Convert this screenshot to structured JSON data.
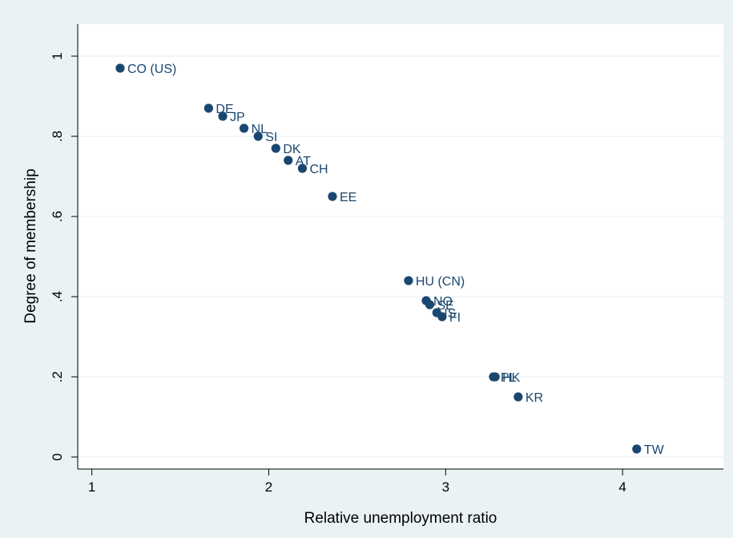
{
  "colors": {
    "background": "#eaf2f3",
    "plot_area": "#ffffff",
    "marker": "#1a476f",
    "gridline": "#eaf2f3"
  },
  "chart_data": {
    "type": "scatter",
    "title": "",
    "xlabel": "Relative unemployment ratio",
    "ylabel": "Degree of membership",
    "xlim": [
      0.92,
      4.57
    ],
    "ylim": [
      -0.03,
      1.08
    ],
    "x_ticks": [
      1,
      2,
      3,
      4
    ],
    "x_tick_labels": [
      "1",
      "2",
      "3",
      "4"
    ],
    "y_ticks": [
      0,
      0.2,
      0.4,
      0.6,
      0.8,
      1
    ],
    "y_tick_labels": [
      "0",
      ".2",
      ".4",
      ".6",
      ".8",
      "1"
    ],
    "grid": "horizontal",
    "legend": "none",
    "points": [
      {
        "label": "CO (US)",
        "x": 1.16,
        "y": 0.97
      },
      {
        "label": "DE",
        "x": 1.66,
        "y": 0.87
      },
      {
        "label": "JP",
        "x": 1.74,
        "y": 0.85
      },
      {
        "label": "NL",
        "x": 1.86,
        "y": 0.82
      },
      {
        "label": "SI",
        "x": 1.94,
        "y": 0.8
      },
      {
        "label": "DK",
        "x": 2.04,
        "y": 0.77
      },
      {
        "label": "AT",
        "x": 2.11,
        "y": 0.74
      },
      {
        "label": "CH",
        "x": 2.19,
        "y": 0.72
      },
      {
        "label": "EE",
        "x": 2.36,
        "y": 0.65
      },
      {
        "label": "HU (CN)",
        "x": 2.79,
        "y": 0.44
      },
      {
        "label": "NO",
        "x": 2.89,
        "y": 0.39
      },
      {
        "label": "SE",
        "x": 2.91,
        "y": 0.38
      },
      {
        "label": "IS",
        "x": 2.95,
        "y": 0.36
      },
      {
        "label": "FI",
        "x": 2.98,
        "y": 0.35
      },
      {
        "label": "PL",
        "x": 3.27,
        "y": 0.2
      },
      {
        "label": "HK",
        "x": 3.28,
        "y": 0.2
      },
      {
        "label": "KR",
        "x": 3.41,
        "y": 0.15
      },
      {
        "label": "TW",
        "x": 4.08,
        "y": 0.02
      }
    ]
  }
}
